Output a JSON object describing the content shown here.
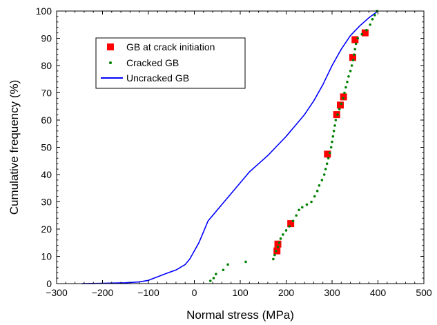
{
  "chart_data": {
    "type": "scatter",
    "xlabel": "Normal stress (MPa)",
    "ylabel": "Cumulative frequency (%)",
    "xlim": [
      -300,
      500
    ],
    "ylim": [
      0,
      100
    ],
    "x_ticks": [
      -300,
      -200,
      -100,
      0,
      100,
      200,
      300,
      400,
      500
    ],
    "y_ticks": [
      0,
      10,
      20,
      30,
      40,
      50,
      60,
      70,
      80,
      90,
      100
    ],
    "legend_position": "top-left",
    "grid": false,
    "series": [
      {
        "name": "GB at crack initiation",
        "kind": "marker-square",
        "color": "#ff0000",
        "points": [
          [
            180,
            12
          ],
          [
            182,
            14.5
          ],
          [
            210,
            22
          ],
          [
            290,
            47.5
          ],
          [
            310,
            62
          ],
          [
            318,
            65.5
          ],
          [
            325,
            68.5
          ],
          [
            345,
            83
          ],
          [
            350,
            89.5
          ],
          [
            372,
            92
          ]
        ]
      },
      {
        "name": "Cracked GB",
        "kind": "marker-dot",
        "color": "#008000",
        "points": [
          [
            35,
            1
          ],
          [
            42,
            2
          ],
          [
            47,
            3.5
          ],
          [
            63,
            5
          ],
          [
            73,
            7
          ],
          [
            112,
            8
          ],
          [
            172,
            9
          ],
          [
            175,
            10.5
          ],
          [
            178,
            12
          ],
          [
            182,
            13.5
          ],
          [
            185,
            15
          ],
          [
            188,
            16.5
          ],
          [
            193,
            18
          ],
          [
            200,
            19.5
          ],
          [
            207,
            21
          ],
          [
            215,
            23
          ],
          [
            222,
            25
          ],
          [
            228,
            27
          ],
          [
            235,
            28
          ],
          [
            245,
            29
          ],
          [
            255,
            30
          ],
          [
            262,
            32
          ],
          [
            268,
            34
          ],
          [
            272,
            36
          ],
          [
            278,
            38
          ],
          [
            283,
            40
          ],
          [
            286,
            42
          ],
          [
            289,
            44
          ],
          [
            292,
            46
          ],
          [
            295,
            48
          ],
          [
            298,
            50
          ],
          [
            300,
            52
          ],
          [
            302,
            54
          ],
          [
            304,
            56
          ],
          [
            306,
            58
          ],
          [
            308,
            60
          ],
          [
            312,
            62
          ],
          [
            316,
            64
          ],
          [
            320,
            66
          ],
          [
            324,
            68
          ],
          [
            327,
            70
          ],
          [
            330,
            72
          ],
          [
            333,
            74
          ],
          [
            336,
            76
          ],
          [
            340,
            78
          ],
          [
            343,
            80
          ],
          [
            346,
            82
          ],
          [
            348,
            84
          ],
          [
            350,
            86
          ],
          [
            352,
            88
          ],
          [
            356,
            90
          ],
          [
            365,
            91.5
          ],
          [
            375,
            93
          ],
          [
            383,
            95
          ],
          [
            388,
            97
          ],
          [
            393,
            98.5
          ],
          [
            398,
            100
          ]
        ]
      },
      {
        "name": "Uncracked GB",
        "kind": "line",
        "color": "#0000ff",
        "points": [
          [
            -245,
            0
          ],
          [
            -200,
            0.1
          ],
          [
            -150,
            0.3
          ],
          [
            -120,
            0.6
          ],
          [
            -100,
            1.2
          ],
          [
            -80,
            2.5
          ],
          [
            -60,
            3.8
          ],
          [
            -40,
            5
          ],
          [
            -20,
            7
          ],
          [
            -10,
            9
          ],
          [
            0,
            12
          ],
          [
            10,
            15
          ],
          [
            20,
            19
          ],
          [
            30,
            23
          ],
          [
            45,
            26
          ],
          [
            60,
            29
          ],
          [
            80,
            33
          ],
          [
            100,
            37
          ],
          [
            120,
            41
          ],
          [
            140,
            44
          ],
          [
            160,
            47
          ],
          [
            180,
            50.5
          ],
          [
            200,
            54
          ],
          [
            220,
            58
          ],
          [
            240,
            62
          ],
          [
            260,
            67
          ],
          [
            280,
            73
          ],
          [
            300,
            80
          ],
          [
            320,
            86
          ],
          [
            340,
            91
          ],
          [
            360,
            94.5
          ],
          [
            380,
            97.5
          ],
          [
            400,
            100
          ]
        ]
      }
    ]
  }
}
